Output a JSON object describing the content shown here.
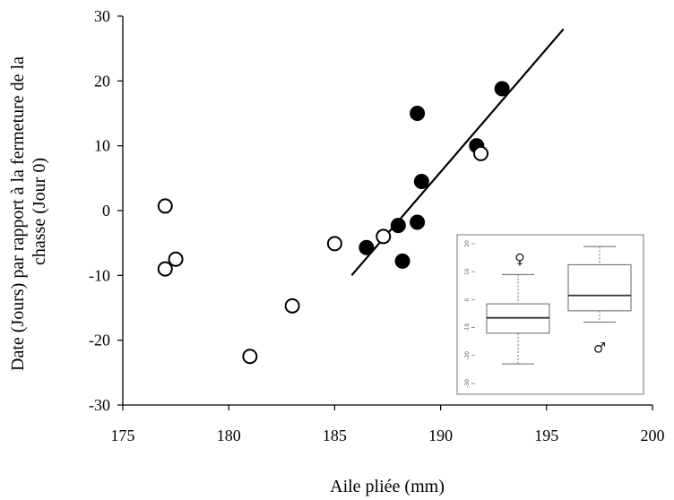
{
  "chart_data": [
    {
      "type": "scatter",
      "xlabel": "Aile pliée (mm)",
      "ylabel": "Date (Jours) par rapport à la fermeture de la chasse (Jour 0)",
      "ylabel_lines": [
        "Date (Jours) par rapport à la fermeture de la",
        "chasse (Jour 0)"
      ],
      "xlim": [
        175,
        200
      ],
      "ylim": [
        -30,
        30
      ],
      "xticks": [
        175,
        180,
        185,
        190,
        195,
        200
      ],
      "yticks": [
        -30,
        -20,
        -10,
        0,
        10,
        20,
        30
      ],
      "grid": false,
      "series": [
        {
          "marker": "filled-circle",
          "color": "#000000",
          "points": [
            {
              "x": 186.5,
              "y": -5.7
            },
            {
              "x": 188.0,
              "y": -2.3
            },
            {
              "x": 188.2,
              "y": -7.8
            },
            {
              "x": 188.9,
              "y": -1.8
            },
            {
              "x": 188.9,
              "y": 15.0
            },
            {
              "x": 189.1,
              "y": 4.5
            },
            {
              "x": 191.7,
              "y": 10.0
            },
            {
              "x": 192.9,
              "y": 18.8
            }
          ]
        },
        {
          "marker": "open-circle",
          "color": "#000000",
          "points": [
            {
              "x": 177.0,
              "y": 0.7
            },
            {
              "x": 177.0,
              "y": -9.0
            },
            {
              "x": 177.5,
              "y": -7.5
            },
            {
              "x": 181.0,
              "y": -22.5
            },
            {
              "x": 183.0,
              "y": -14.7
            },
            {
              "x": 185.0,
              "y": -5.1
            },
            {
              "x": 187.3,
              "y": -4.0
            },
            {
              "x": 191.9,
              "y": 8.8
            }
          ]
        }
      ],
      "trendline": {
        "x": [
          185.8,
          195.8
        ],
        "y": [
          -10.0,
          28.0
        ]
      }
    },
    {
      "type": "boxplot",
      "ylim": [
        -30,
        20
      ],
      "yticks": [
        -30,
        -20,
        -10,
        0,
        10,
        20
      ],
      "boxes": [
        {
          "symbol": "♀",
          "min": -23,
          "q1": -12,
          "median": -6.5,
          "q3": -1.5,
          "max": 9
        },
        {
          "symbol": "♂",
          "min": -8,
          "q1": -4,
          "median": 1.5,
          "q3": 12.5,
          "max": 19
        }
      ]
    }
  ]
}
